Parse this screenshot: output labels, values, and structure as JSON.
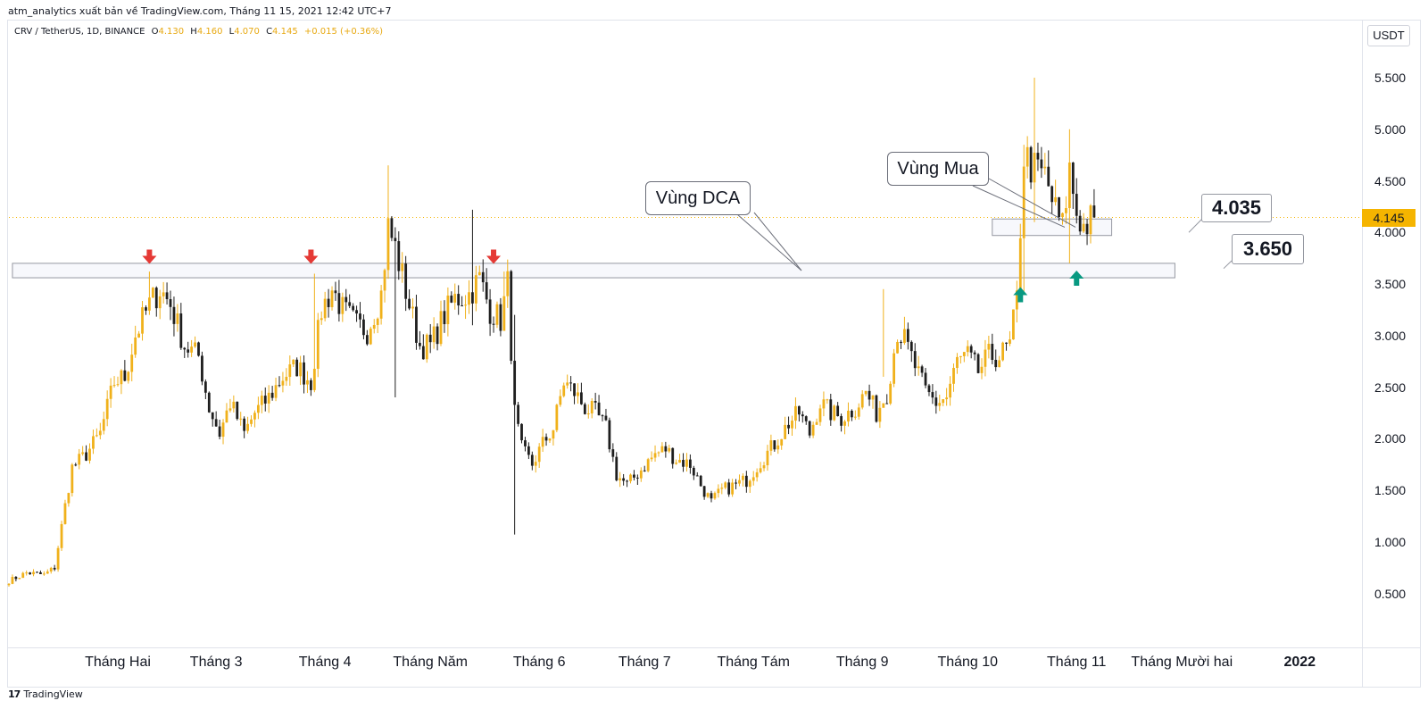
{
  "header": {
    "published_by": "atm_analytics xuất bản về TradingView.com, Tháng 11 15, 2021 12:42 UTC+7"
  },
  "legend": {
    "symbol": "CRV / TetherUS, 1D, BINANCE",
    "o_label": "O",
    "o_value": "4.130",
    "h_label": "H",
    "h_value": "4.160",
    "l_label": "L",
    "l_value": "4.070",
    "c_label": "C",
    "c_value": "4.145",
    "change": "+0.015 (+0.36%)"
  },
  "price_axis": {
    "currency": "USDT",
    "last_price": "4.145"
  },
  "footer": {
    "logo": "17",
    "brand": "TradingView"
  },
  "annotations": {
    "dca_zone": "Vùng DCA",
    "buy_zone": "Vùng Mua",
    "upper_level": "4.035",
    "lower_level": "3.650"
  },
  "colors": {
    "bull": "#f0b11b",
    "bear": "#1e1e1e",
    "down_arrow": "#e53935",
    "up_arrow": "#089981",
    "last_price": "#f5b400",
    "zone_border": "#9598a1"
  },
  "chart_data": {
    "type": "candlestick",
    "interval": "1D",
    "ylim": [
      0,
      6.0
    ],
    "y_ticks": [
      "0.500",
      "1.000",
      "1.500",
      "2.000",
      "2.500",
      "3.000",
      "3.500",
      "4.000",
      "4.500",
      "5.000",
      "5.500"
    ],
    "x_ticks": [
      {
        "label": "Tháng Hai",
        "day": 31
      },
      {
        "label": "Tháng 3",
        "day": 59
      },
      {
        "label": "Tháng 4",
        "day": 90
      },
      {
        "label": "Tháng Năm",
        "day": 120
      },
      {
        "label": "Tháng 6",
        "day": 151
      },
      {
        "label": "Tháng 7",
        "day": 181
      },
      {
        "label": "Tháng Tám",
        "day": 212
      },
      {
        "label": "Tháng 9",
        "day": 243
      },
      {
        "label": "Tháng 10",
        "day": 273
      },
      {
        "label": "Tháng 11",
        "day": 304
      },
      {
        "label": "Tháng Mười hai",
        "day": 334
      },
      {
        "label": "2022",
        "day": 365
      }
    ],
    "anchors": [
      [
        0,
        0.62
      ],
      [
        5,
        0.7
      ],
      [
        10,
        0.68
      ],
      [
        13,
        0.75
      ],
      [
        16,
        1.35
      ],
      [
        18,
        1.72
      ],
      [
        22,
        1.85
      ],
      [
        26,
        2.05
      ],
      [
        30,
        2.55
      ],
      [
        33,
        2.6
      ],
      [
        36,
        3.0
      ],
      [
        40,
        3.3
      ],
      [
        43,
        3.45
      ],
      [
        46,
        3.3
      ],
      [
        50,
        2.9
      ],
      [
        54,
        2.8
      ],
      [
        57,
        2.3
      ],
      [
        60,
        2.05
      ],
      [
        63,
        2.35
      ],
      [
        67,
        2.05
      ],
      [
        70,
        2.25
      ],
      [
        74,
        2.4
      ],
      [
        78,
        2.6
      ],
      [
        82,
        2.7
      ],
      [
        86,
        2.55
      ],
      [
        89,
        3.25
      ],
      [
        92,
        3.45
      ],
      [
        95,
        3.25
      ],
      [
        99,
        3.1
      ],
      [
        102,
        3.05
      ],
      [
        106,
        3.4
      ],
      [
        108,
        4.05
      ],
      [
        110,
        3.85
      ],
      [
        114,
        3.3
      ],
      [
        117,
        2.9
      ],
      [
        120,
        2.9
      ],
      [
        124,
        3.2
      ],
      [
        127,
        3.35
      ],
      [
        131,
        3.4
      ],
      [
        134,
        3.55
      ],
      [
        137,
        3.25
      ],
      [
        140,
        3.15
      ],
      [
        142,
        3.5
      ],
      [
        144,
        2.25
      ],
      [
        146,
        1.9
      ],
      [
        149,
        1.75
      ],
      [
        152,
        1.95
      ],
      [
        155,
        2.1
      ],
      [
        158,
        2.55
      ],
      [
        161,
        2.45
      ],
      [
        164,
        2.3
      ],
      [
        167,
        2.25
      ],
      [
        170,
        2.1
      ],
      [
        173,
        1.65
      ],
      [
        176,
        1.55
      ],
      [
        180,
        1.7
      ],
      [
        184,
        1.85
      ],
      [
        187,
        1.9
      ],
      [
        190,
        1.8
      ],
      [
        194,
        1.75
      ],
      [
        197,
        1.55
      ],
      [
        200,
        1.38
      ],
      [
        203,
        1.5
      ],
      [
        207,
        1.55
      ],
      [
        210,
        1.6
      ],
      [
        214,
        1.78
      ],
      [
        218,
        1.95
      ],
      [
        222,
        2.15
      ],
      [
        225,
        2.25
      ],
      [
        228,
        2.05
      ],
      [
        231,
        2.35
      ],
      [
        234,
        2.25
      ],
      [
        237,
        2.2
      ],
      [
        241,
        2.3
      ],
      [
        244,
        2.45
      ],
      [
        247,
        2.25
      ],
      [
        250,
        2.45
      ],
      [
        253,
        3.05
      ],
      [
        255,
        2.95
      ],
      [
        258,
        2.7
      ],
      [
        261,
        2.45
      ],
      [
        264,
        2.35
      ],
      [
        267,
        2.4
      ],
      [
        270,
        2.75
      ],
      [
        273,
        2.8
      ],
      [
        276,
        2.65
      ],
      [
        279,
        2.8
      ],
      [
        282,
        2.8
      ],
      [
        285,
        2.9
      ],
      [
        287,
        3.35
      ],
      [
        289,
        4.75
      ],
      [
        292,
        4.6
      ],
      [
        295,
        4.55
      ],
      [
        298,
        4.2
      ],
      [
        300,
        4.05
      ],
      [
        302,
        4.6
      ],
      [
        304,
        4.2
      ],
      [
        306,
        4.05
      ],
      [
        309,
        4.145
      ]
    ],
    "wicks": [
      {
        "day": 40,
        "high": 3.62,
        "low": 3.2
      },
      {
        "day": 87,
        "high": 3.6,
        "low": 2.45
      },
      {
        "day": 108,
        "high": 4.65,
        "low": 3.55
      },
      {
        "day": 110,
        "high": 4.05,
        "low": 2.4
      },
      {
        "day": 132,
        "high": 4.22,
        "low": 3.1
      },
      {
        "day": 141,
        "high": 3.62,
        "low": 3.05
      },
      {
        "day": 144,
        "high": 3.2,
        "low": 1.07
      },
      {
        "day": 249,
        "high": 3.45,
        "low": 2.6
      },
      {
        "day": 289,
        "high": 4.85,
        "low": 3.4
      },
      {
        "day": 292,
        "high": 5.5,
        "low": 4.1
      },
      {
        "day": 302,
        "high": 5.0,
        "low": 3.7
      }
    ],
    "levels": [
      {
        "name": "Vùng DCA",
        "from_day": 1,
        "to_day": 332,
        "low": 3.56,
        "high": 3.7
      },
      {
        "name": "Vùng Mua",
        "from_day": 280,
        "to_day": 314,
        "low": 3.97,
        "high": 4.13
      }
    ],
    "arrows": [
      {
        "dir": "down",
        "day": 40,
        "price": 3.66
      },
      {
        "dir": "down",
        "day": 86,
        "price": 3.66
      },
      {
        "dir": "down",
        "day": 138,
        "price": 3.66
      },
      {
        "dir": "up",
        "day": 288,
        "price": 3.47
      },
      {
        "dir": "up",
        "day": 304,
        "price": 3.63
      }
    ],
    "last_price": 4.145
  }
}
